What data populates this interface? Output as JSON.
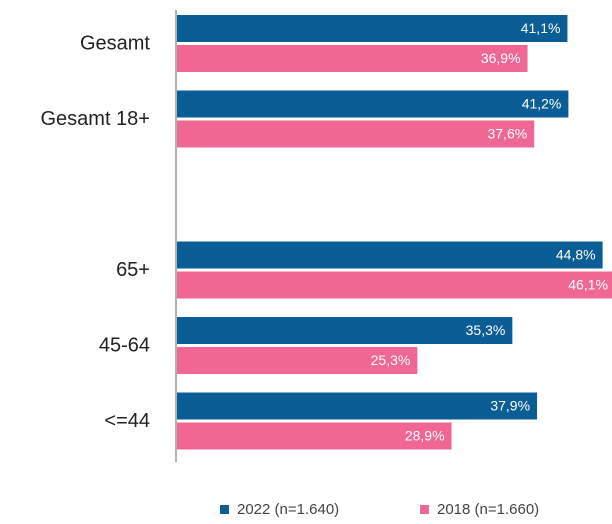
{
  "chart_data": {
    "type": "barh",
    "categories": [
      "Gesamt",
      "Gesamt 18+",
      null,
      "65+",
      "45-64",
      "<=44"
    ],
    "series": [
      {
        "name": "2022 (n=1.640)",
        "color": "#0b5d96",
        "values": [
          41.1,
          41.2,
          null,
          44.8,
          35.3,
          37.9
        ],
        "value_labels": [
          "41,1%",
          "41,2%",
          null,
          "44,8%",
          "35,3%",
          "37,9%"
        ]
      },
      {
        "name": "2018 (n=1.660)",
        "color": "#f06793",
        "values": [
          36.9,
          37.6,
          null,
          46.1,
          25.3,
          28.9
        ],
        "value_labels": [
          "36,9%",
          "37,6%",
          null,
          "46,1%",
          "25,3%",
          "28,9%"
        ]
      }
    ]
  }
}
